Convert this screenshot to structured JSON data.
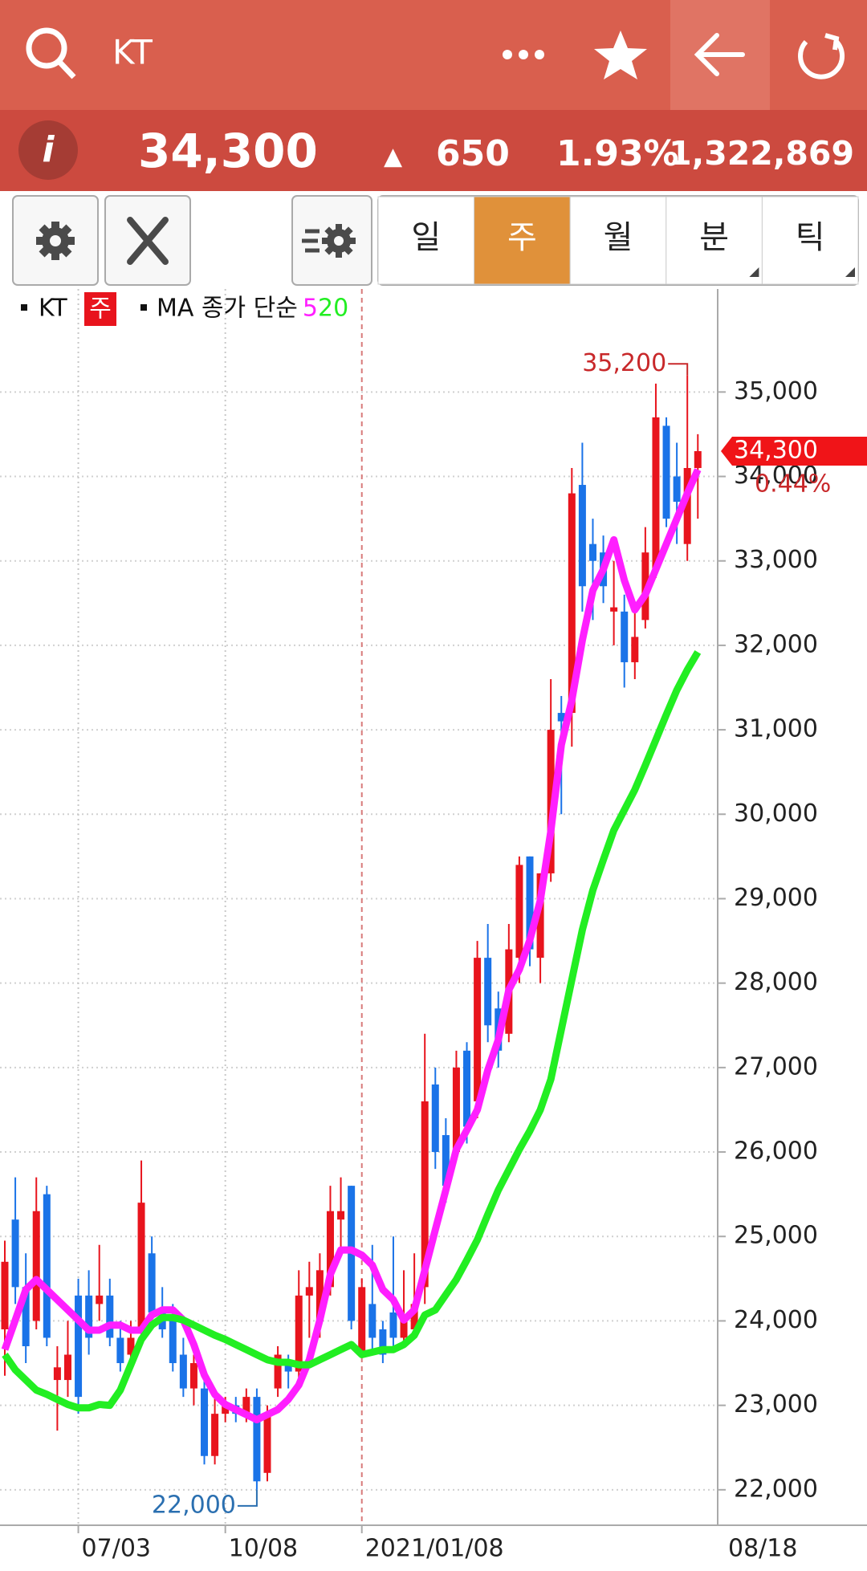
{
  "header": {
    "search_text": "KT"
  },
  "quote": {
    "price": "34,300",
    "direction": "▲",
    "change": "650",
    "change_percent": "1.93%",
    "volume": "1,322,869"
  },
  "toolbar": {
    "tabs": [
      "일",
      "주",
      "월",
      "분",
      "틱"
    ],
    "selected_index": 1
  },
  "chart_data": {
    "type": "candlestick",
    "legend": {
      "period": "주",
      "indicator": "MA 종가 단순"
    },
    "categories": [
      null,
      null,
      null,
      null,
      null,
      null,
      null,
      "07/03",
      null,
      null,
      null,
      null,
      null,
      null,
      null,
      null,
      null,
      null,
      null,
      null,
      null,
      "10/08",
      null,
      null,
      null,
      null,
      null,
      null,
      null,
      null,
      null,
      null,
      null,
      null,
      "2021/01/08",
      null,
      null,
      null,
      null,
      null,
      null,
      null,
      null,
      null,
      null,
      null,
      null,
      null,
      null,
      null,
      null,
      null,
      null,
      null,
      null,
      null,
      null,
      null,
      null,
      null,
      null,
      null,
      null,
      null,
      null,
      null,
      null
    ],
    "x_end_label": "08/18",
    "series": [
      {
        "name": "KT",
        "up_color": "#e8141d",
        "down_color": "#1a73e8",
        "open": [
          23900,
          25200,
          24400,
          24000,
          25500,
          23300,
          23300,
          24300,
          24300,
          24200,
          24300,
          23800,
          23600,
          23900,
          24800,
          24100,
          24000,
          23600,
          23200,
          23200,
          22400,
          22900,
          23000,
          22900,
          23100,
          22200,
          23200,
          23500,
          23400,
          24300,
          24000,
          24400,
          25200,
          25600,
          23600,
          24200,
          23900,
          24100,
          23800,
          23900,
          24400,
          26800,
          26200,
          26000,
          27200,
          26600,
          28300,
          27700,
          27400,
          28300,
          29500,
          28300,
          29300,
          31200,
          31200,
          33900,
          33200,
          33100,
          32400,
          32400,
          31800,
          32300,
          32900,
          34600,
          34000,
          33200,
          34100
        ],
        "high": [
          24950,
          25700,
          24800,
          25700,
          25600,
          23700,
          24000,
          24500,
          24600,
          24900,
          24500,
          24000,
          24000,
          25900,
          25000,
          24400,
          24200,
          23800,
          23600,
          23300,
          23100,
          23100,
          23100,
          23200,
          23200,
          23000,
          23700,
          23600,
          24600,
          24700,
          24800,
          25600,
          25700,
          25600,
          24500,
          24900,
          24000,
          25000,
          24600,
          24800,
          27400,
          27000,
          26400,
          27200,
          27300,
          28500,
          28700,
          27900,
          28700,
          29500,
          29500,
          29300,
          31600,
          31400,
          34100,
          34400,
          33500,
          33300,
          33000,
          32600,
          32400,
          33400,
          35100,
          34700,
          34400,
          35200,
          34500
        ],
        "low": [
          23350,
          24200,
          23500,
          23900,
          23700,
          22700,
          23100,
          22900,
          23600,
          24000,
          23700,
          23400,
          23500,
          23800,
          23900,
          23800,
          23400,
          23100,
          23000,
          22300,
          22300,
          22800,
          22800,
          22800,
          22000,
          22100,
          23100,
          23200,
          23300,
          23800,
          23800,
          24300,
          24800,
          23900,
          23600,
          23600,
          23500,
          23700,
          23700,
          23900,
          24200,
          25800,
          25400,
          25900,
          26100,
          26400,
          27300,
          27000,
          27300,
          28000,
          28200,
          28000,
          29200,
          30000,
          30800,
          32400,
          32300,
          32500,
          32000,
          31500,
          31600,
          32200,
          32800,
          33400,
          33200,
          33000,
          33500
        ],
        "close": [
          24700,
          24400,
          23700,
          25300,
          23800,
          23450,
          23600,
          23100,
          23800,
          24300,
          23800,
          23500,
          23800,
          25400,
          24100,
          23900,
          23500,
          23200,
          23500,
          22400,
          22900,
          23000,
          22900,
          23100,
          22100,
          22900,
          23600,
          23400,
          24300,
          24400,
          24600,
          25300,
          25300,
          24000,
          24400,
          23800,
          23600,
          23800,
          24000,
          24200,
          26600,
          26000,
          25600,
          27000,
          26300,
          28300,
          27500,
          27200,
          28400,
          29400,
          28400,
          29300,
          31000,
          31100,
          33800,
          32700,
          33000,
          32700,
          32450,
          31800,
          32100,
          33100,
          34700,
          33500,
          33700,
          34100,
          34300
        ]
      },
      {
        "name": "5",
        "color": "#ff1fff",
        "values": [
          23660,
          24010,
          24370,
          24490,
          24370,
          24250,
          24130,
          24010,
          23890,
          23890,
          23950,
          23950,
          23890,
          23890,
          24070,
          24130,
          24130,
          24010,
          23720,
          23360,
          23130,
          23010,
          22950,
          22890,
          22830,
          22890,
          22950,
          23070,
          23240,
          23540,
          24010,
          24550,
          24840,
          24840,
          24780,
          24660,
          24370,
          24250,
          24010,
          24130,
          24600,
          25080,
          25550,
          26030,
          26260,
          26500,
          26970,
          27330,
          27920,
          28160,
          28510,
          28980,
          29800,
          30820,
          31350,
          32060,
          32650,
          32900,
          33250,
          32770,
          32420,
          32600,
          32900,
          33200,
          33500,
          33800,
          34080
        ]
      },
      {
        "name": "20",
        "color": "#22ee22",
        "values": [
          23600,
          23420,
          23300,
          23180,
          23130,
          23070,
          23010,
          22970,
          22970,
          23010,
          23000,
          23180,
          23480,
          23780,
          23950,
          24040,
          24040,
          24010,
          23950,
          23890,
          23830,
          23780,
          23720,
          23660,
          23600,
          23540,
          23510,
          23510,
          23480,
          23480,
          23540,
          23600,
          23660,
          23720,
          23600,
          23630,
          23660,
          23660,
          23720,
          23830,
          24070,
          24130,
          24310,
          24490,
          24720,
          24960,
          25260,
          25550,
          25790,
          26030,
          26250,
          26500,
          26860,
          27450,
          28040,
          28630,
          29100,
          29460,
          29810,
          30050,
          30290,
          30580,
          30880,
          31180,
          31470,
          31710,
          31920
        ]
      }
    ],
    "ylim": [
      21580,
      36220
    ],
    "yticks": [
      {
        "value": 22000,
        "label": "22,000"
      },
      {
        "value": 23000,
        "label": "23,000"
      },
      {
        "value": 24000,
        "label": "24,000"
      },
      {
        "value": 25000,
        "label": "25,000"
      },
      {
        "value": 26000,
        "label": "26,000"
      },
      {
        "value": 27000,
        "label": "27,000"
      },
      {
        "value": 28000,
        "label": "28,000"
      },
      {
        "value": 29000,
        "label": "29,000"
      },
      {
        "value": 30000,
        "label": "30,000"
      },
      {
        "value": 31000,
        "label": "31,000"
      },
      {
        "value": 32000,
        "label": "32,000"
      },
      {
        "value": 33000,
        "label": "33,000"
      },
      {
        "value": 34000,
        "label": "34,000"
      },
      {
        "value": 35000,
        "label": "35,000"
      }
    ],
    "grid": true,
    "max_label": {
      "value": 35200,
      "label": "35,200"
    },
    "min_label": {
      "value": 22000,
      "label": "22,000"
    },
    "last_price": {
      "value": 34300,
      "label": "34,300"
    },
    "last_change": "0.44%"
  }
}
